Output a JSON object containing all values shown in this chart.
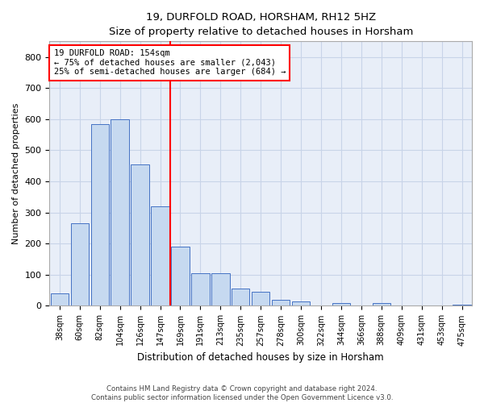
{
  "title": "19, DURFOLD ROAD, HORSHAM, RH12 5HZ",
  "subtitle": "Size of property relative to detached houses in Horsham",
  "xlabel": "Distribution of detached houses by size in Horsham",
  "ylabel": "Number of detached properties",
  "categories": [
    "38sqm",
    "60sqm",
    "82sqm",
    "104sqm",
    "126sqm",
    "147sqm",
    "169sqm",
    "191sqm",
    "213sqm",
    "235sqm",
    "257sqm",
    "278sqm",
    "300sqm",
    "322sqm",
    "344sqm",
    "366sqm",
    "388sqm",
    "409sqm",
    "431sqm",
    "453sqm",
    "475sqm"
  ],
  "values": [
    40,
    265,
    585,
    600,
    455,
    320,
    190,
    105,
    105,
    55,
    45,
    20,
    15,
    0,
    10,
    0,
    10,
    0,
    0,
    0,
    5
  ],
  "bar_color": "#c6d9f0",
  "bar_edge_color": "#4472c4",
  "property_line_x": 5.5,
  "property_line_label": "19 DURFOLD ROAD: 154sqm",
  "annotation_line1": "← 75% of detached houses are smaller (2,043)",
  "annotation_line2": "25% of semi-detached houses are larger (684) →",
  "annotation_box_color": "#ff0000",
  "ylim": [
    0,
    850
  ],
  "yticks": [
    0,
    100,
    200,
    300,
    400,
    500,
    600,
    700,
    800
  ],
  "footer_line1": "Contains HM Land Registry data © Crown copyright and database right 2024.",
  "footer_line2": "Contains public sector information licensed under the Open Government Licence v3.0.",
  "background_color": "#ffffff",
  "ax_background_color": "#e8eef8",
  "grid_color": "#c8d4e8"
}
